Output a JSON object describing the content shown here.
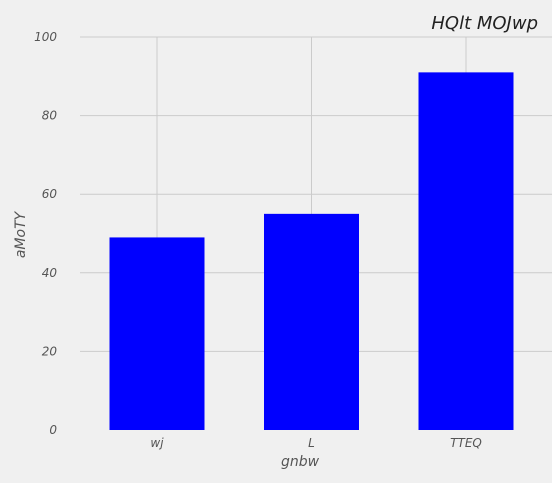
{
  "chart_data": {
    "type": "bar",
    "title": "HQlt MOJwp",
    "xlabel": "gnbw",
    "ylabel": "aMoTY",
    "categories": [
      "wj",
      "L",
      "TTEQ"
    ],
    "values": [
      49,
      55,
      91
    ],
    "ylim": [
      0,
      100
    ],
    "yticks": [
      "0",
      "20",
      "40",
      "60",
      "80",
      "100"
    ],
    "grid": true,
    "legend": "none",
    "bar_color": "#0000ff",
    "background_color": "#f0f0f0",
    "grid_color": "#cbcbcb"
  }
}
